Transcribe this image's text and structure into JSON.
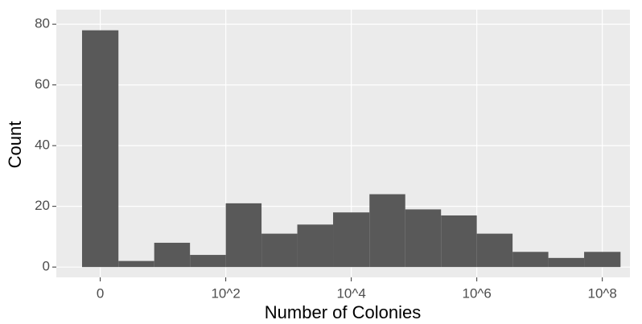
{
  "chart_data": {
    "type": "histogram",
    "x_label": "Number of Colonies",
    "y_label": "Count",
    "bins": [
      -0.29,
      0.29,
      0.86,
      1.43,
      2.0,
      2.57,
      3.14,
      3.71,
      4.29,
      4.86,
      5.43,
      6.0,
      6.57,
      7.14,
      7.71,
      8.29
    ],
    "values": [
      78,
      2,
      8,
      4,
      21,
      11,
      14,
      18,
      24,
      19,
      17,
      11,
      5,
      3,
      5
    ],
    "color": "#595959",
    "xlim": [
      -0.7,
      8.44
    ],
    "ylim": [
      -3.4,
      84.8
    ],
    "xticks": [
      {
        "value": 0,
        "label": "0"
      },
      {
        "value": 2,
        "label": "10^2"
      },
      {
        "value": 4,
        "label": "10^4"
      },
      {
        "value": 6,
        "label": "10^6"
      },
      {
        "value": 8,
        "label": "10^8"
      }
    ],
    "yticks": [
      0,
      20,
      40,
      60,
      80
    ],
    "grid": true
  }
}
